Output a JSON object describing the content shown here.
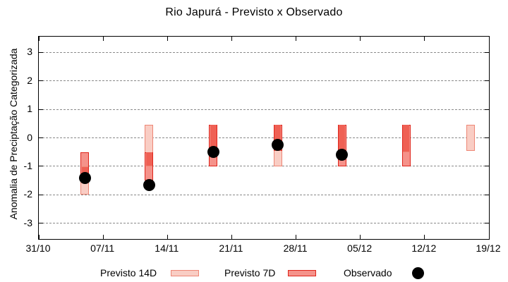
{
  "title": "Rio Japurá - Previsto x Observado",
  "legend": {
    "previsto14_label": "Previsto 14D",
    "previsto7_label": "Previsto 7D",
    "observado_label": "Observado"
  },
  "chart_data": {
    "type": "bar",
    "subtype": "range-bars-with-scatter",
    "title": "Rio Japurá - Previsto x Observado",
    "xlabel": "",
    "ylabel": "Anomalia de Preciptação Categorizada",
    "ylim": [
      -3.55,
      3.55
    ],
    "xlim_days": [
      0,
      49
    ],
    "grid": "horizontal-dashed",
    "legend_position": "bottom",
    "y_ticks": [
      3,
      2,
      1,
      0,
      -1,
      -2,
      -3
    ],
    "x_ticks": [
      {
        "label": "31/10",
        "day": 0
      },
      {
        "label": "07/11",
        "day": 7
      },
      {
        "label": "14/11",
        "day": 14
      },
      {
        "label": "21/11",
        "day": 21
      },
      {
        "label": "28/11",
        "day": 28
      },
      {
        "label": "05/12",
        "day": 35
      },
      {
        "label": "12/12",
        "day": 42
      },
      {
        "label": "19/12",
        "day": 49
      }
    ],
    "series_names": [
      "Previsto 14D",
      "Previsto 7D",
      "Observado"
    ],
    "bars": [
      {
        "date": "05/11",
        "day": 5,
        "previsto14": {
          "hi": -1.0,
          "lo": -2.0
        },
        "previsto7": {
          "hi": -0.5,
          "lo": -1.5
        },
        "observado": -1.4
      },
      {
        "date": "12/11",
        "day": 12,
        "previsto14": {
          "hi": 0.45,
          "lo": -1.0
        },
        "previsto7": {
          "hi": -0.5,
          "lo": -1.5
        },
        "observado": -1.65
      },
      {
        "date": "19/11",
        "day": 19,
        "previsto14": {
          "hi": 0.45,
          "lo": -0.5
        },
        "previsto7": {
          "hi": 0.45,
          "lo": -1.0
        },
        "observado": -0.5
      },
      {
        "date": "26/11",
        "day": 26,
        "previsto14": {
          "hi": 0.45,
          "lo": -1.0
        },
        "previsto7": {
          "hi": 0.45,
          "lo": -0.45
        },
        "observado": -0.25
      },
      {
        "date": "03/12",
        "day": 33,
        "previsto14": {
          "hi": 0.45,
          "lo": -0.6
        },
        "previsto7": {
          "hi": 0.45,
          "lo": -1.0
        },
        "observado": -0.6
      },
      {
        "date": "10/12",
        "day": 40,
        "previsto14": {
          "hi": 0.45,
          "lo": -0.5
        },
        "previsto7": {
          "hi": 0.45,
          "lo": -1.0
        },
        "observado": null
      },
      {
        "date": "17/12",
        "day": 47,
        "previsto14": {
          "hi": 0.45,
          "lo": -0.45
        },
        "previsto7": null,
        "observado": null
      }
    ],
    "colors": {
      "previsto14_fill": "#f9cdc4",
      "previsto14_border": "#ee8675",
      "previsto7_fill": "#f5928a",
      "previsto7_border": "#df241a",
      "overlap_fill": "#ef6054",
      "observado": "#000000",
      "grid": "#8a8a8a",
      "frame": "#000000"
    }
  }
}
